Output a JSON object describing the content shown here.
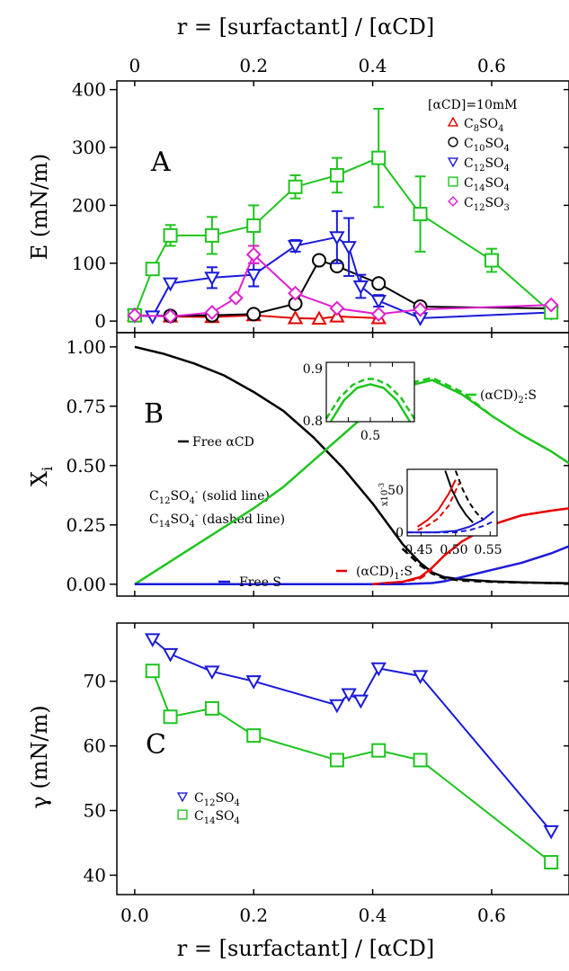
{
  "chart_data": [
    {
      "panel": "A",
      "type": "line",
      "panel_label": "A",
      "top_axis_label": "r = [surfactant] / [αCD]",
      "top_ticks": [
        "0",
        "0.2",
        "0.4",
        "0.6"
      ],
      "ylabel": "E (mN/m)",
      "yticks": [
        "0",
        "100",
        "200",
        "300",
        "400"
      ],
      "xlim": [
        -0.03,
        0.73
      ],
      "ylim": [
        -20,
        415
      ],
      "legend_title": "[αCD]=10mM",
      "legend_placement": "top-right",
      "series": [
        {
          "name": "C8SO4",
          "label_main": "C",
          "label_sub": "8",
          "label_mid": "SO",
          "label_sub2": "4",
          "color": "#e60000",
          "marker": "triangle-up",
          "x": [
            0.0,
            0.06,
            0.13,
            0.2,
            0.27,
            0.31,
            0.34,
            0.41
          ],
          "y": [
            10,
            8,
            7,
            10,
            5,
            4,
            8,
            5
          ],
          "err": [
            0,
            0,
            0,
            0,
            0,
            0,
            0,
            0
          ]
        },
        {
          "name": "C10SO4",
          "label_main": "C",
          "label_sub": "10",
          "label_mid": "SO",
          "label_sub2": "4",
          "color": "#000000",
          "marker": "circle",
          "x": [
            0.0,
            0.06,
            0.13,
            0.2,
            0.27,
            0.31,
            0.34,
            0.41,
            0.48,
            0.7
          ],
          "y": [
            10,
            9,
            10,
            12,
            30,
            105,
            95,
            65,
            25,
            22
          ],
          "err": [
            0,
            0,
            0,
            0,
            0,
            0,
            0,
            0,
            0,
            0
          ]
        },
        {
          "name": "C12SO4",
          "label_main": "C",
          "label_sub": "12",
          "label_mid": "SO",
          "label_sub2": "4",
          "color": "#1a1adb",
          "marker": "triangle-down",
          "x": [
            0.0,
            0.03,
            0.06,
            0.13,
            0.2,
            0.27,
            0.34,
            0.36,
            0.38,
            0.41,
            0.48,
            0.7
          ],
          "y": [
            10,
            8,
            65,
            75,
            80,
            130,
            145,
            128,
            60,
            35,
            5,
            15
          ],
          "err": [
            0,
            0,
            0,
            18,
            20,
            10,
            45,
            50,
            20,
            10,
            0,
            0
          ]
        },
        {
          "name": "C14SO4",
          "label_main": "C",
          "label_sub": "14",
          "label_mid": "SO",
          "label_sub2": "4",
          "color": "#1ec41e",
          "marker": "square",
          "x": [
            0.0,
            0.03,
            0.06,
            0.13,
            0.2,
            0.27,
            0.34,
            0.41,
            0.48,
            0.6,
            0.7
          ],
          "y": [
            10,
            90,
            148,
            148,
            165,
            232,
            252,
            282,
            185,
            105,
            15
          ],
          "err": [
            0,
            0,
            18,
            32,
            35,
            20,
            30,
            85,
            65,
            20,
            0
          ]
        },
        {
          "name": "C12SO3",
          "label_main": "C",
          "label_sub": "12",
          "label_mid": "SO",
          "label_sub2": "3",
          "color": "#e020d0",
          "marker": "diamond",
          "x": [
            0.0,
            0.06,
            0.13,
            0.17,
            0.2,
            0.27,
            0.34,
            0.41,
            0.48,
            0.7
          ],
          "y": [
            10,
            8,
            15,
            40,
            115,
            48,
            22,
            12,
            20,
            28
          ],
          "err": [
            0,
            0,
            0,
            0,
            15,
            0,
            0,
            0,
            0,
            0
          ]
        }
      ]
    },
    {
      "panel": "B",
      "type": "line",
      "panel_label": "B",
      "ylabel_main": "X",
      "ylabel_sub": "i",
      "yticks": [
        "0.00",
        "0.25",
        "0.50",
        "0.75",
        "1.00"
      ],
      "xlim": [
        -0.03,
        0.73
      ],
      "ylim": [
        -0.05,
        1.06
      ],
      "note_solid": "C12SO4- (solid line)",
      "note_dashed": "C14SO4- (dashed line)",
      "series": [
        {
          "name": "Free αCD",
          "label": "Free αCD",
          "color": "#000000",
          "x": [
            0.0,
            0.05,
            0.1,
            0.15,
            0.2,
            0.25,
            0.3,
            0.35,
            0.4,
            0.45,
            0.48,
            0.5,
            0.52,
            0.55,
            0.6,
            0.65,
            0.7,
            0.73
          ],
          "y": [
            1.0,
            0.97,
            0.93,
            0.88,
            0.81,
            0.73,
            0.62,
            0.49,
            0.34,
            0.17,
            0.09,
            0.05,
            0.03,
            0.02,
            0.012,
            0.008,
            0.005,
            0.004
          ]
        },
        {
          "name": "(αCD)2:S",
          "label": "(αCD)2:S",
          "color": "#1ec41e",
          "x": [
            0.0,
            0.05,
            0.1,
            0.15,
            0.2,
            0.25,
            0.3,
            0.35,
            0.4,
            0.45,
            0.5,
            0.55,
            0.6,
            0.65,
            0.7,
            0.73
          ],
          "y": [
            0.0,
            0.08,
            0.16,
            0.24,
            0.32,
            0.41,
            0.52,
            0.63,
            0.74,
            0.83,
            0.86,
            0.8,
            0.71,
            0.63,
            0.56,
            0.51
          ]
        },
        {
          "name": "(αCD)1:S",
          "label": "(αCD)1:S",
          "color": "#e60000",
          "x": [
            0.0,
            0.4,
            0.45,
            0.48,
            0.5,
            0.52,
            0.55,
            0.6,
            0.65,
            0.7,
            0.73
          ],
          "y": [
            0.0,
            0.0,
            0.01,
            0.03,
            0.07,
            0.12,
            0.18,
            0.25,
            0.29,
            0.31,
            0.32
          ]
        },
        {
          "name": "Free S",
          "label": "Free S",
          "color": "#1a1adb",
          "x": [
            0.0,
            0.45,
            0.5,
            0.52,
            0.55,
            0.6,
            0.65,
            0.7,
            0.73
          ],
          "y": [
            0.0,
            0.0,
            0.005,
            0.012,
            0.03,
            0.06,
            0.09,
            0.13,
            0.16
          ]
        }
      ],
      "dashed_series": [
        {
          "name": "(αCD)2:S dashed",
          "color": "#1ec41e",
          "x": [
            0.4,
            0.45,
            0.5,
            0.55,
            0.6
          ],
          "y": [
            0.745,
            0.84,
            0.87,
            0.81,
            0.71
          ]
        },
        {
          "name": "Free αCD dashed",
          "color": "#000000",
          "x": [
            0.45,
            0.48,
            0.5,
            0.52,
            0.55,
            0.6,
            0.65,
            0.7,
            0.73
          ],
          "y": [
            0.15,
            0.08,
            0.045,
            0.025,
            0.015,
            0.01,
            0.007,
            0.005,
            0.004
          ]
        },
        {
          "name": "(αCD)1:S dashed",
          "color": "#e60000",
          "x": [
            0.4,
            0.45,
            0.48,
            0.5
          ],
          "y": [
            0.0,
            0.01,
            0.025,
            0.06
          ]
        }
      ],
      "inset1": {
        "yticks": [
          "0.8",
          "0.9"
        ],
        "xtick": "0.5",
        "xlim": [
          0.4,
          0.6
        ],
        "ylim": [
          0.8,
          0.9
        ],
        "solid": {
          "x": [
            0.41,
            0.44,
            0.47,
            0.5,
            0.53,
            0.56,
            0.59
          ],
          "y": [
            0.8,
            0.836,
            0.857,
            0.863,
            0.857,
            0.836,
            0.8
          ]
        },
        "dashed": {
          "x": [
            0.4,
            0.43,
            0.46,
            0.49,
            0.51,
            0.54,
            0.57,
            0.6
          ],
          "y": [
            0.805,
            0.84,
            0.862,
            0.872,
            0.872,
            0.862,
            0.84,
            0.805
          ]
        }
      },
      "inset2": {
        "exponent": "x10",
        "exponent_power": "-3",
        "yticks": [
          "0",
          "50"
        ],
        "xticks": [
          "0.45",
          "0.50",
          "0.55"
        ],
        "xlim": [
          0.43,
          0.56
        ],
        "ylim": [
          -5,
          90
        ],
        "lines": [
          {
            "color": "#000000",
            "style": "solid",
            "x": [
              0.485,
              0.495,
              0.505,
              0.515,
              0.525
            ],
            "y": [
              88,
              60,
              40,
              25,
              14
            ]
          },
          {
            "color": "#000000",
            "style": "dashed",
            "x": [
              0.5,
              0.51,
              0.52,
              0.53,
              0.54
            ],
            "y": [
              88,
              62,
              42,
              28,
              18
            ]
          },
          {
            "color": "#e60000",
            "style": "solid",
            "x": [
              0.445,
              0.46,
              0.475,
              0.49,
              0.5
            ],
            "y": [
              8,
              18,
              32,
              55,
              75
            ]
          },
          {
            "color": "#e60000",
            "style": "dashed",
            "x": [
              0.445,
              0.46,
              0.475,
              0.49,
              0.505
            ],
            "y": [
              3,
              10,
              20,
              38,
              70
            ]
          },
          {
            "color": "#1a1adb",
            "style": "solid",
            "x": [
              0.43,
              0.47,
              0.5,
              0.52,
              0.54,
              0.555
            ],
            "y": [
              0,
              0,
              2,
              8,
              18,
              30
            ]
          },
          {
            "color": "#1a1adb",
            "style": "dashed",
            "x": [
              0.43,
              0.5,
              0.52,
              0.54,
              0.555
            ],
            "y": [
              0,
              0,
              3,
              9,
              16
            ]
          }
        ]
      }
    },
    {
      "panel": "C",
      "type": "line",
      "panel_label": "C",
      "ylabel": "γ (mN/m)",
      "yticks": [
        "40",
        "50",
        "60",
        "70"
      ],
      "xticks": [
        "0.0",
        "0.2",
        "0.4",
        "0.6"
      ],
      "xlabel": "r = [surfactant] / [αCD]",
      "xlim": [
        -0.03,
        0.73
      ],
      "ylim": [
        37,
        79
      ],
      "legend_placement": "bottom-left",
      "series": [
        {
          "name": "C12SO4",
          "label_main": "C",
          "label_sub": "12",
          "label_mid": "SO",
          "label_sub2": "4",
          "color": "#1a1adb",
          "marker": "triangle-down",
          "x": [
            0.03,
            0.06,
            0.13,
            0.2,
            0.34,
            0.36,
            0.38,
            0.41,
            0.48,
            0.7
          ],
          "y": [
            76.5,
            74.2,
            71.5,
            70.0,
            66.3,
            68.0,
            67.0,
            72.0,
            70.8,
            46.8
          ]
        },
        {
          "name": "C14SO4",
          "label_main": "C",
          "label_sub": "14",
          "label_mid": "SO",
          "label_sub2": "4",
          "color": "#1ec41e",
          "marker": "square",
          "x": [
            0.03,
            0.06,
            0.13,
            0.2,
            0.34,
            0.41,
            0.48,
            0.7
          ],
          "y": [
            71.6,
            64.5,
            65.8,
            61.6,
            57.8,
            59.3,
            57.8,
            42.0
          ]
        }
      ]
    }
  ]
}
